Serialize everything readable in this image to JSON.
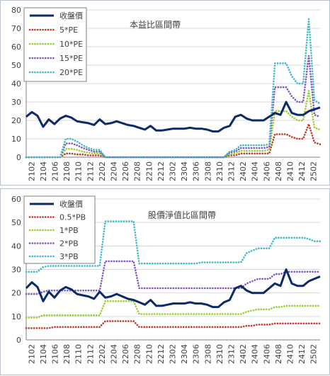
{
  "chart_data": [
    {
      "type": "line",
      "title": "本益比區間帶",
      "ylim": [
        0,
        80
      ],
      "yticks": [
        0,
        10,
        20,
        30,
        40,
        50,
        60,
        70,
        80
      ],
      "grid": "horizontal",
      "legend_position": "top-left",
      "xtick_labels": [
        "2102",
        "2104",
        "2106",
        "2108",
        "2110",
        "2112",
        "2202",
        "2204",
        "2206",
        "2208",
        "2210",
        "2212",
        "2302",
        "2304",
        "2306",
        "2308",
        "2310",
        "2312",
        "2402",
        "2404",
        "2406",
        "2408",
        "2410",
        "2412",
        "2502"
      ],
      "series": [
        {
          "name": "收盤價",
          "color": "#0b2a66",
          "style": "solid",
          "values": [
            22,
            24.5,
            22.5,
            16.5,
            20.5,
            18,
            21,
            22.5,
            21.5,
            19.5,
            19,
            18.5,
            17.5,
            20.5,
            18,
            18.5,
            19.5,
            18.5,
            17.5,
            17,
            16,
            15,
            17,
            14.5,
            14.5,
            15,
            15.5,
            15.5,
            15.5,
            16,
            15.5,
            15.5,
            15,
            14,
            14,
            16,
            17,
            22,
            23,
            21,
            20,
            20,
            20,
            22,
            24,
            23,
            30,
            24,
            23,
            23,
            25,
            26,
            27
          ]
        },
        {
          "name": "5*PE",
          "color": "#c0392b",
          "style": "dotted",
          "values": [
            0,
            0,
            0,
            0,
            0,
            0,
            0,
            2,
            2,
            1.5,
            1.5,
            1,
            1,
            1,
            0,
            0,
            0,
            0,
            0,
            0,
            0,
            0,
            0,
            0,
            0,
            0,
            0,
            0,
            0,
            0,
            0,
            0,
            0,
            0,
            0,
            0,
            1,
            1,
            2,
            2,
            2,
            2,
            2,
            2,
            12.5,
            12.5,
            12.5,
            11,
            10,
            10,
            18,
            8,
            7
          ]
        },
        {
          "name": "10*PE",
          "color": "#9acd32",
          "style": "dotted",
          "values": [
            0,
            0,
            0,
            0,
            0,
            0,
            0,
            4.5,
            4.5,
            4,
            3,
            2.5,
            2,
            2,
            0,
            0,
            0,
            0,
            0,
            0,
            0,
            0,
            0,
            0,
            0,
            0,
            0,
            0,
            0,
            0,
            0,
            0,
            0,
            0,
            0,
            0,
            1.5,
            2,
            3.5,
            3.5,
            3.5,
            3.5,
            3.5,
            4,
            25,
            25,
            25,
            22,
            20,
            20,
            36,
            16,
            15
          ]
        },
        {
          "name": "15*PE",
          "color": "#7e57c2",
          "style": "dotted",
          "values": [
            0,
            0,
            0,
            0,
            0,
            0,
            0,
            7.5,
            7.5,
            6.5,
            5,
            4,
            3,
            3,
            0,
            0,
            0,
            0,
            0,
            0,
            0,
            0,
            0,
            0,
            0,
            0,
            0,
            0,
            0,
            0,
            0,
            0,
            0,
            0,
            0,
            0,
            2.5,
            3,
            5,
            5,
            5,
            5,
            5,
            5.5,
            38,
            38,
            38,
            33,
            30,
            30,
            55,
            23,
            22
          ]
        },
        {
          "name": "20*PE",
          "color": "#3fb8c9",
          "style": "dotted",
          "values": [
            0,
            0,
            0,
            0,
            0,
            0,
            0,
            10,
            10,
            8.5,
            6.5,
            5,
            4,
            4,
            0,
            0,
            0,
            0,
            0,
            0,
            0,
            0,
            0,
            0,
            0,
            0,
            0,
            0,
            0,
            0,
            0,
            0,
            0,
            0,
            0,
            0,
            3,
            4,
            6.5,
            6.5,
            6.5,
            6.5,
            6.5,
            7,
            51,
            51,
            51,
            44,
            40,
            40,
            75,
            31,
            29
          ]
        }
      ]
    },
    {
      "type": "line",
      "title": "股價淨值比區間帶",
      "ylim": [
        0,
        60
      ],
      "yticks": [
        0,
        10,
        20,
        30,
        40,
        50,
        60
      ],
      "grid": "horizontal",
      "legend_position": "top-left",
      "xtick_labels": [
        "2102",
        "2104",
        "2106",
        "2108",
        "2110",
        "2112",
        "2202",
        "2204",
        "2206",
        "2208",
        "2210",
        "2212",
        "2302",
        "2304",
        "2306",
        "2308",
        "2310",
        "2312",
        "2402",
        "2404",
        "2406",
        "2408",
        "2410",
        "2412",
        "2502"
      ],
      "series": [
        {
          "name": "收盤價",
          "color": "#0b2a66",
          "style": "solid",
          "values": [
            22,
            24.5,
            22.5,
            16.5,
            20.5,
            18,
            21,
            22.5,
            21.5,
            19.5,
            19,
            18.5,
            17.5,
            20.5,
            18,
            18.5,
            19.5,
            18.5,
            17.5,
            17,
            16,
            15,
            17,
            14.5,
            14.5,
            15,
            15.5,
            15.5,
            15.5,
            16,
            15.5,
            15.5,
            15,
            14,
            14,
            16,
            17,
            22,
            23,
            21,
            20,
            20,
            20,
            22,
            24,
            23,
            30,
            24,
            23,
            23,
            25,
            26,
            27
          ]
        },
        {
          "name": "0.5*PB",
          "color": "#c0392b",
          "style": "dotted",
          "values": [
            5,
            5,
            5,
            5,
            5,
            5.5,
            5.5,
            5.5,
            5.5,
            5.5,
            5.5,
            5.5,
            5.5,
            5.5,
            8,
            8,
            8,
            8,
            8,
            8,
            5.5,
            5.5,
            5.5,
            5.5,
            5.5,
            5.5,
            5.5,
            5.5,
            5.5,
            5.5,
            5.5,
            5.5,
            5.5,
            5.5,
            5.5,
            5.5,
            5.5,
            5.5,
            5.5,
            6,
            6,
            6.5,
            6.5,
            6.5,
            7,
            7,
            7,
            7,
            7,
            7,
            7,
            7,
            7
          ]
        },
        {
          "name": "1*PB",
          "color": "#9acd32",
          "style": "dotted",
          "values": [
            9.5,
            9.5,
            9.5,
            10.5,
            10.5,
            10.5,
            10.5,
            10.5,
            10.5,
            10.5,
            10.5,
            10.5,
            10.5,
            10.5,
            16.5,
            16.5,
            16.5,
            16.5,
            16.5,
            16.5,
            11,
            11,
            11,
            11,
            11,
            11,
            11,
            11,
            11,
            11,
            11,
            11,
            11,
            11,
            11,
            11,
            11,
            11,
            11,
            12,
            12.5,
            13,
            13,
            13,
            14,
            14,
            14.5,
            14.5,
            14.5,
            14.5,
            14.5,
            14.5,
            14.5
          ]
        },
        {
          "name": "2*PB",
          "color": "#7e57c2",
          "style": "dotted",
          "values": [
            19.5,
            19.5,
            19.5,
            20.5,
            21,
            21,
            21,
            21,
            21,
            21,
            21,
            21,
            21,
            21,
            33.5,
            33.5,
            33.5,
            33.5,
            33.5,
            33.5,
            22,
            22,
            22,
            22,
            22,
            22,
            22,
            22,
            22,
            22,
            22,
            22,
            22,
            22,
            22,
            22,
            22,
            22,
            22,
            24,
            25,
            26,
            26,
            26,
            28,
            28,
            29,
            29,
            29,
            29,
            29,
            29,
            29
          ]
        },
        {
          "name": "3*PB",
          "color": "#3fb8c9",
          "style": "dotted",
          "values": [
            29,
            29,
            29,
            31,
            31.5,
            31.5,
            31.5,
            31.5,
            31.5,
            31.5,
            31.5,
            31.5,
            31.5,
            31.5,
            50.5,
            50.5,
            50.5,
            50.5,
            50.5,
            50.5,
            32.5,
            32.5,
            32.5,
            32.5,
            32.5,
            32.5,
            32.5,
            32.5,
            32.5,
            32.5,
            32.5,
            33,
            33,
            33,
            33,
            33,
            33,
            33,
            33,
            37,
            38,
            39,
            39,
            39,
            43.5,
            43.5,
            43.5,
            43.5,
            43.5,
            43.5,
            43,
            42,
            42
          ]
        }
      ]
    }
  ]
}
